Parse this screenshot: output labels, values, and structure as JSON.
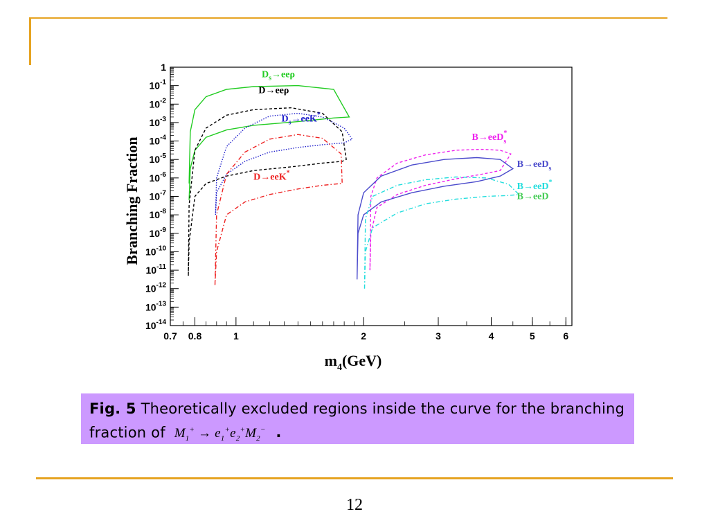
{
  "slide": {
    "page_number": "12",
    "accent_color": "#e6a321",
    "caption": {
      "fig_label": "Fig. 5",
      "text": "Theoretically excluded regions inside the curve for the branching fraction of",
      "formula": {
        "m1": "M",
        "m1_sub": "1",
        "m1_sup": "+",
        "arrow": "→",
        "e1": "e",
        "e1_sub": "1",
        "e1_sup": "+",
        "e2": "e",
        "e2_sub": "2",
        "e2_sup": "+",
        "m2": "M",
        "m2_sub": "2",
        "m2_sup": "−"
      },
      "end": ".",
      "background": "#cc99ff"
    }
  },
  "chart_data": {
    "type": "line",
    "x_scale": "log",
    "y_scale": "log",
    "xlim": [
      0.7,
      6.2
    ],
    "ylim": [
      1e-14,
      1
    ],
    "xlabel": "m",
    "xlabel_sub": "4",
    "xlabel_unit": "(GeV)",
    "ylabel": "Branching Fraction",
    "x_ticks": [
      {
        "value": 0.7,
        "label": "0.7"
      },
      {
        "value": 0.8,
        "label": "0.8"
      },
      {
        "value": 1,
        "label": "1"
      },
      {
        "value": 2,
        "label": "2"
      },
      {
        "value": 3,
        "label": "3"
      },
      {
        "value": 4,
        "label": "4"
      },
      {
        "value": 5,
        "label": "5"
      },
      {
        "value": 6,
        "label": "6"
      }
    ],
    "y_ticks": [
      {
        "exp": 0,
        "base": "1",
        "sup": ""
      },
      {
        "exp": -1,
        "base": "10",
        "sup": "-1"
      },
      {
        "exp": -2,
        "base": "10",
        "sup": "-2"
      },
      {
        "exp": -3,
        "base": "10",
        "sup": "-3"
      },
      {
        "exp": -4,
        "base": "10",
        "sup": "-4"
      },
      {
        "exp": -5,
        "base": "10",
        "sup": "-5"
      },
      {
        "exp": -6,
        "base": "10",
        "sup": "-6"
      },
      {
        "exp": -7,
        "base": "10",
        "sup": "-7"
      },
      {
        "exp": -8,
        "base": "10",
        "sup": "-8"
      },
      {
        "exp": -9,
        "base": "10",
        "sup": "-9"
      },
      {
        "exp": -10,
        "base": "10",
        "sup": "-10"
      },
      {
        "exp": -11,
        "base": "10",
        "sup": "-11"
      },
      {
        "exp": -12,
        "base": "10",
        "sup": "-12"
      },
      {
        "exp": -13,
        "base": "10",
        "sup": "-13"
      },
      {
        "exp": -14,
        "base": "10",
        "sup": "-14"
      }
    ],
    "series": [
      {
        "id": "ds-ee-rho",
        "color": "#22cc22",
        "dash": "solid",
        "label": {
          "main": "D",
          "sub": "s",
          "rest": "→eeρ",
          "sup": "",
          "x": 1.15,
          "logy": -0.55
        },
        "upper": [
          [
            0.775,
            -6.3
          ],
          [
            0.78,
            -3.5
          ],
          [
            0.8,
            -2.3
          ],
          [
            0.85,
            -1.6
          ],
          [
            0.95,
            -1.2
          ],
          [
            1.1,
            -1.05
          ],
          [
            1.4,
            -1.0
          ],
          [
            1.7,
            -1.2
          ],
          [
            1.85,
            -2.7
          ]
        ],
        "lower": [
          [
            0.775,
            -7.2
          ],
          [
            0.78,
            -5.5
          ],
          [
            0.8,
            -4.5
          ],
          [
            0.85,
            -3.8
          ],
          [
            0.95,
            -3.4
          ],
          [
            1.1,
            -3.15
          ],
          [
            1.4,
            -2.95
          ],
          [
            1.7,
            -2.75
          ],
          [
            1.85,
            -2.7
          ]
        ]
      },
      {
        "id": "d-ee-rho",
        "color": "#000000",
        "dash": "4,3",
        "label": {
          "main": "D",
          "sub": "",
          "rest": "→eeρ",
          "sup": "",
          "x": 1.13,
          "logy": -1.4
        },
        "upper": [
          [
            0.772,
            -11.3
          ],
          [
            0.775,
            -7.5
          ],
          [
            0.8,
            -4.5
          ],
          [
            0.85,
            -3.3
          ],
          [
            0.95,
            -2.6
          ],
          [
            1.1,
            -2.3
          ],
          [
            1.35,
            -2.2
          ],
          [
            1.6,
            -2.5
          ],
          [
            1.78,
            -3.5
          ],
          [
            1.82,
            -5.0
          ]
        ],
        "lower": [
          [
            0.772,
            -11.3
          ],
          [
            0.775,
            -9.5
          ],
          [
            0.8,
            -7.0
          ],
          [
            0.85,
            -6.3
          ],
          [
            0.95,
            -5.9
          ],
          [
            1.1,
            -5.6
          ],
          [
            1.35,
            -5.4
          ],
          [
            1.6,
            -5.2
          ],
          [
            1.78,
            -5.1
          ],
          [
            1.82,
            -5.0
          ]
        ]
      },
      {
        "id": "ds-ee-kstar",
        "color": "#2222cc",
        "dash": "1.5,2",
        "label": {
          "main": "D",
          "sub": "s",
          "rest": "→eeK",
          "sup": "*",
          "x": 1.28,
          "logy": -2.95
        },
        "upper": [
          [
            0.895,
            -8.0
          ],
          [
            0.9,
            -6.0
          ],
          [
            0.95,
            -4.3
          ],
          [
            1.05,
            -3.3
          ],
          [
            1.2,
            -2.65
          ],
          [
            1.4,
            -2.5
          ],
          [
            1.6,
            -2.7
          ],
          [
            1.8,
            -3.3
          ],
          [
            1.88,
            -3.9
          ]
        ],
        "lower": [
          [
            0.895,
            -8.0
          ],
          [
            0.9,
            -6.8
          ],
          [
            0.95,
            -5.8
          ],
          [
            1.05,
            -5.1
          ],
          [
            1.2,
            -4.6
          ],
          [
            1.4,
            -4.35
          ],
          [
            1.6,
            -4.2
          ],
          [
            1.8,
            -4.1
          ],
          [
            1.88,
            -3.9
          ]
        ]
      },
      {
        "id": "d-ee-kstar",
        "color": "#ee2222",
        "dash": "6,3,1.5,3",
        "label": {
          "main": "D",
          "sub": "",
          "rest": "→eeK",
          "sup": "*",
          "x": 1.1,
          "logy": -6.1
        },
        "upper": [
          [
            0.892,
            -11.8
          ],
          [
            0.9,
            -8.0
          ],
          [
            0.95,
            -5.8
          ],
          [
            1.05,
            -4.6
          ],
          [
            1.2,
            -3.9
          ],
          [
            1.4,
            -3.65
          ],
          [
            1.6,
            -3.85
          ],
          [
            1.77,
            -4.7
          ],
          [
            1.78,
            -6.3
          ]
        ],
        "lower": [
          [
            0.892,
            -11.8
          ],
          [
            0.9,
            -10.0
          ],
          [
            0.95,
            -8.0
          ],
          [
            1.05,
            -7.3
          ],
          [
            1.2,
            -6.9
          ],
          [
            1.4,
            -6.6
          ],
          [
            1.6,
            -6.4
          ],
          [
            1.77,
            -6.3
          ],
          [
            1.78,
            -6.3
          ]
        ]
      },
      {
        "id": "b-ee-dsstar",
        "color": "#ee22ee",
        "dash": "4,3",
        "label": {
          "main": "B",
          "sub": "",
          "rest": "→eeD",
          "sup": "*",
          "sub2": "s",
          "x": 3.6,
          "logy": -3.95
        },
        "upper": [
          [
            2.07,
            -11.0
          ],
          [
            2.08,
            -7.0
          ],
          [
            2.15,
            -6.0
          ],
          [
            2.4,
            -5.2
          ],
          [
            2.8,
            -4.75
          ],
          [
            3.3,
            -4.5
          ],
          [
            3.8,
            -4.45
          ],
          [
            4.2,
            -4.5
          ],
          [
            4.45,
            -4.7
          ]
        ],
        "lower": [
          [
            2.07,
            -11.0
          ],
          [
            2.08,
            -9.0
          ],
          [
            2.15,
            -7.6
          ],
          [
            2.4,
            -6.9
          ],
          [
            2.8,
            -6.4
          ],
          [
            3.3,
            -6.05
          ],
          [
            3.8,
            -5.8
          ],
          [
            4.2,
            -5.6
          ],
          [
            4.45,
            -4.7
          ]
        ]
      },
      {
        "id": "b-ee-ds",
        "color": "#4b4bcc",
        "dash": "solid",
        "label": {
          "main": "B",
          "sub": "",
          "rest": "→eeD",
          "sup": "",
          "sub2": "s",
          "x": 4.6,
          "logy": -5.4
        },
        "upper": [
          [
            1.93,
            -11.5
          ],
          [
            1.94,
            -8.0
          ],
          [
            2.0,
            -6.8
          ],
          [
            2.2,
            -5.9
          ],
          [
            2.6,
            -5.3
          ],
          [
            3.1,
            -5.0
          ],
          [
            3.7,
            -4.9
          ],
          [
            4.2,
            -5.0
          ],
          [
            4.5,
            -5.5
          ]
        ],
        "lower": [
          [
            1.93,
            -11.5
          ],
          [
            1.94,
            -9.0
          ],
          [
            2.0,
            -8.0
          ],
          [
            2.2,
            -7.3
          ],
          [
            2.6,
            -6.8
          ],
          [
            3.1,
            -6.45
          ],
          [
            3.7,
            -6.2
          ],
          [
            4.2,
            -5.9
          ],
          [
            4.5,
            -5.5
          ]
        ]
      },
      {
        "id": "b-ee-dstar",
        "color": "#22dddd",
        "dash": "6,3,1.5,3",
        "label": {
          "main": "B",
          "sub": "",
          "rest": "→eeD",
          "sup": "*",
          "x": 4.6,
          "logy": -6.6
        },
        "upper": [
          [
            2.01,
            -12.0
          ],
          [
            2.02,
            -8.2
          ],
          [
            2.1,
            -7.0
          ],
          [
            2.4,
            -6.4
          ],
          [
            2.8,
            -6.1
          ],
          [
            3.3,
            -5.95
          ],
          [
            3.9,
            -6.0
          ],
          [
            4.4,
            -6.35
          ],
          [
            4.65,
            -6.9
          ]
        ],
        "lower": [
          [
            2.01,
            -12.0
          ],
          [
            2.02,
            -10.0
          ],
          [
            2.1,
            -8.7
          ],
          [
            2.4,
            -7.9
          ],
          [
            2.8,
            -7.4
          ],
          [
            3.3,
            -7.15
          ],
          [
            3.9,
            -7.0
          ],
          [
            4.4,
            -6.95
          ],
          [
            4.65,
            -6.9
          ]
        ]
      },
      {
        "id": "b-ee-d",
        "color": "#44cc55",
        "dash": "solid",
        "label": {
          "main": "B",
          "sub": "",
          "rest": "→eeD",
          "sup": "",
          "x": 4.6,
          "logy": -7.15
        },
        "upper": [],
        "lower": []
      }
    ]
  }
}
